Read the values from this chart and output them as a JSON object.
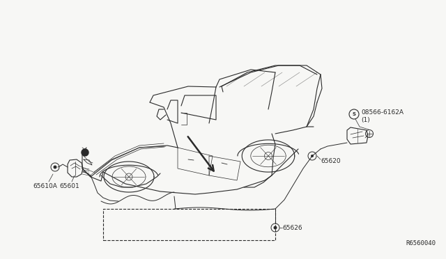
{
  "bg_color": "#f7f7f5",
  "line_color": "#2a2a2a",
  "diagram_ref": "R6560040",
  "figsize": [
    6.4,
    3.72
  ],
  "dpi": 100,
  "labels": {
    "08566_part": "08566-6162A",
    "08566_qty": "(1)",
    "p65620": "65620",
    "p65626": "65626",
    "p65601": "65601",
    "p65610A": "65610A"
  }
}
